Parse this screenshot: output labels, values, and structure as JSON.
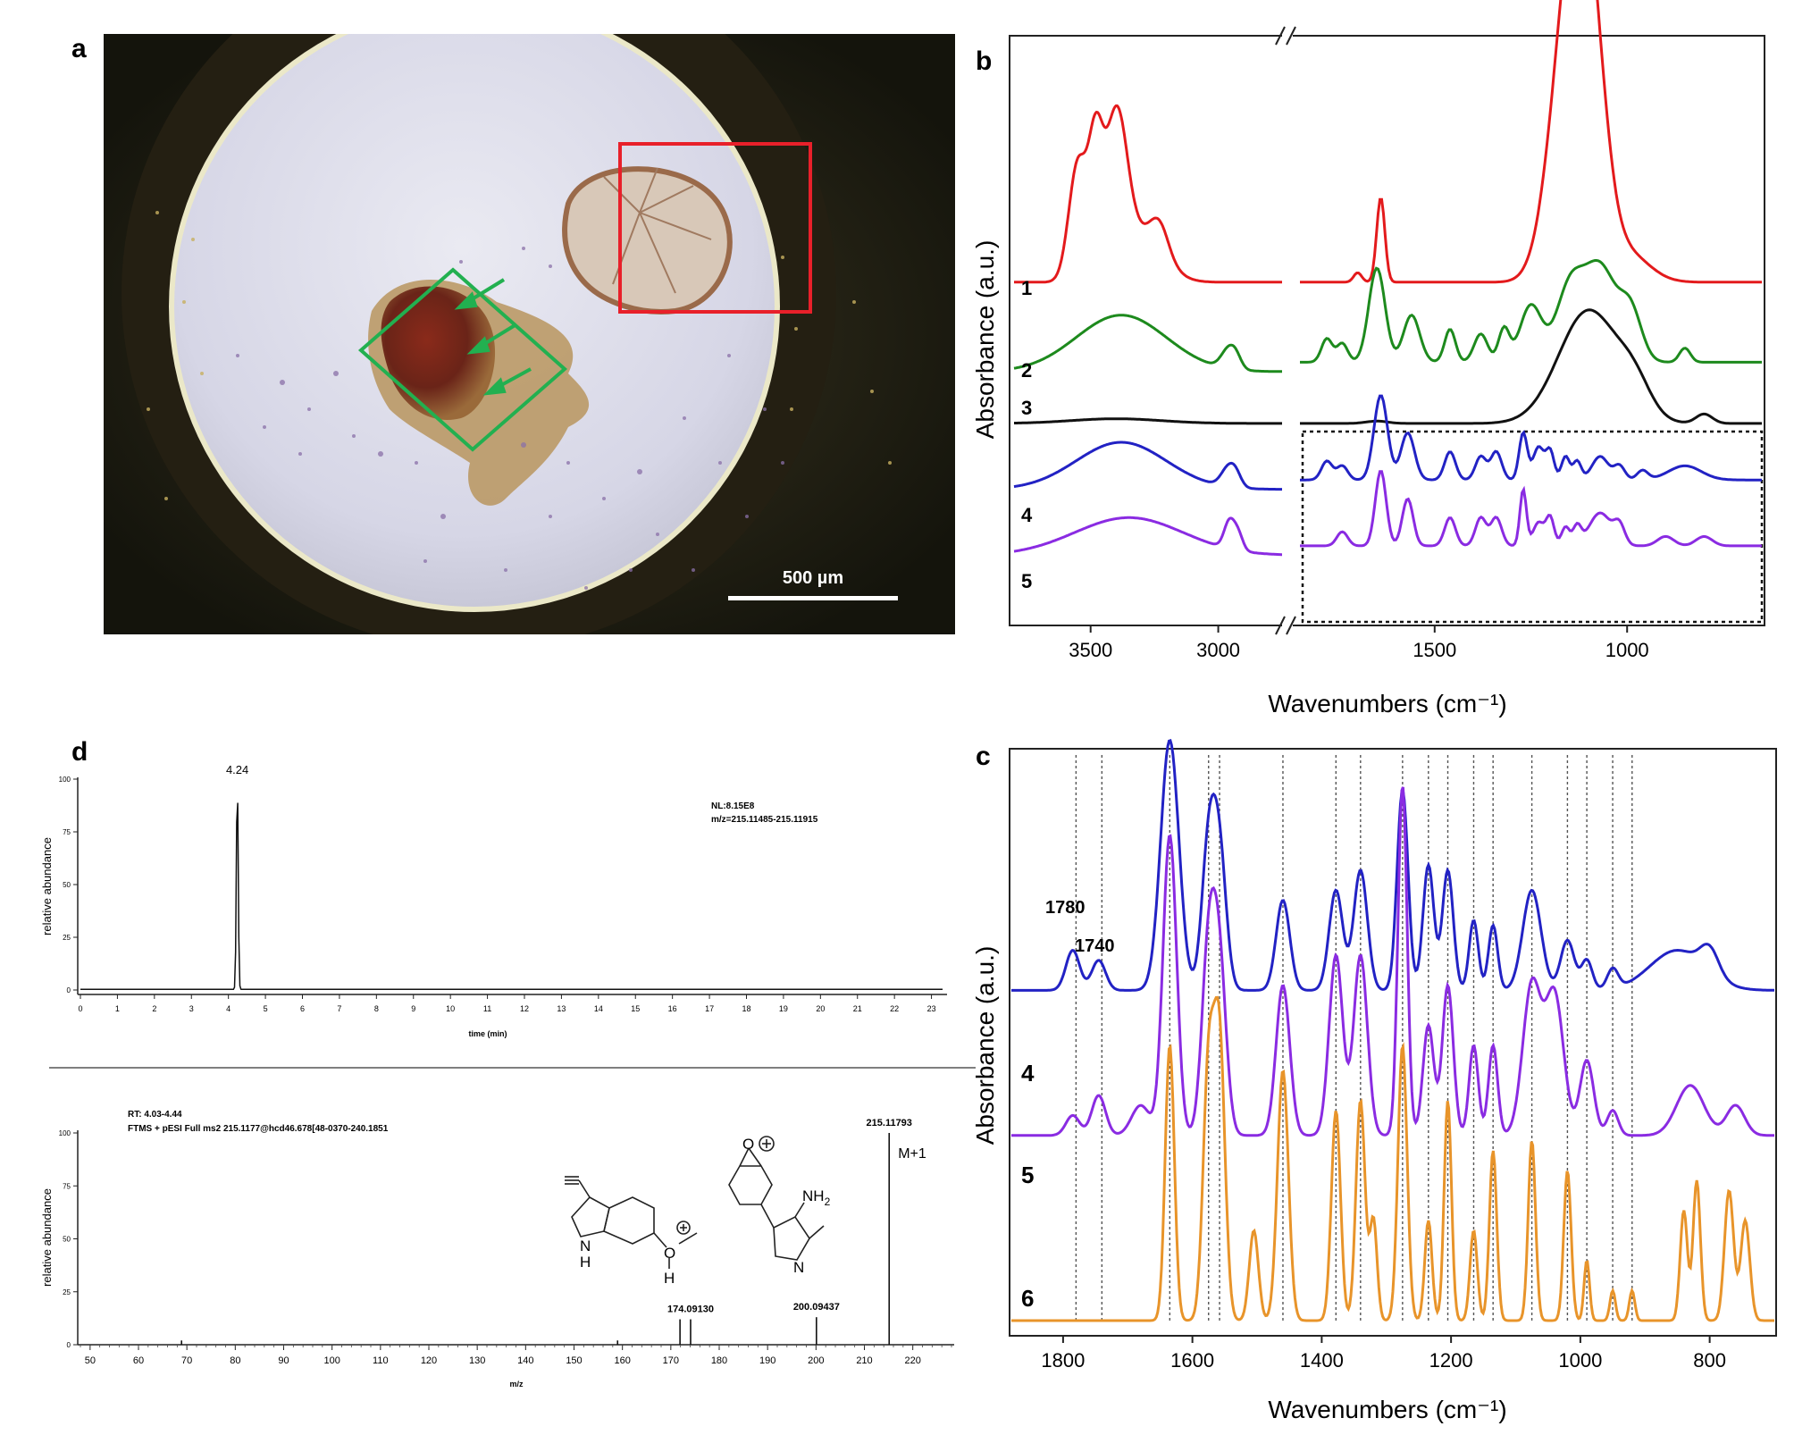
{
  "panels": {
    "a": "a",
    "b": "b",
    "c": "c",
    "d": "d"
  },
  "micrograph": {
    "scale_bar_label": "500 µm",
    "highlight_colors": {
      "region_red": "#e8202a",
      "region_green": "#22b050",
      "arrows": "#22b050"
    },
    "fibre_count_arrows": 3
  },
  "chart_data": [
    {
      "id": "b",
      "type": "line",
      "xlabel": "Wavenumbers (cm⁻¹)",
      "ylabel": "Absorbance (a.u.)",
      "x_axis_break": true,
      "x_left_range": [
        3800,
        2750
      ],
      "x_right_range": [
        1850,
        650
      ],
      "x_ticks_left": [
        "3500",
        "3000"
      ],
      "x_ticks_right": [
        "1500",
        "1000"
      ],
      "highlight_box": "dotted box around spectra 4 and 5 (fingerprint region)",
      "series": [
        {
          "name": "1",
          "color": "#e31a1c",
          "offset": 0.53,
          "left_baseline": 0.0,
          "left_peaks": [
            [
              3550,
              0.25,
              50
            ],
            [
              3480,
              0.26,
              40
            ],
            [
              3400,
              0.32,
              60
            ],
            [
              3300,
              0.1,
              120
            ],
            [
              3230,
              0.06,
              50
            ]
          ],
          "right_baseline": 0.0,
          "right_peaks": [
            [
              1700,
              0.02,
              15
            ],
            [
              1640,
              0.18,
              15
            ],
            [
              1150,
              0.55,
              70
            ],
            [
              1100,
              0.45,
              60
            ],
            [
              1000,
              0.06,
              80
            ]
          ]
        },
        {
          "name": "2",
          "color": "#1d8a1d",
          "offset": 0.34,
          "left_baseline": 0.0,
          "left_peaks": [
            [
              3380,
              0.12,
              250
            ],
            [
              2960,
              0.04,
              40
            ],
            [
              2930,
              0.02,
              30
            ]
          ],
          "right_baseline": 0.02,
          "right_peaks": [
            [
              1780,
              0.05,
              20
            ],
            [
              1740,
              0.04,
              20
            ],
            [
              1650,
              0.2,
              30
            ],
            [
              1560,
              0.1,
              30
            ],
            [
              1460,
              0.07,
              20
            ],
            [
              1380,
              0.06,
              25
            ],
            [
              1320,
              0.07,
              20
            ],
            [
              1250,
              0.12,
              40
            ],
            [
              1150,
              0.15,
              50
            ],
            [
              1070,
              0.2,
              60
            ],
            [
              990,
              0.1,
              40
            ],
            [
              850,
              0.03,
              20
            ]
          ]
        },
        {
          "name": "3",
          "color": "#111111",
          "offset": 0.23,
          "left_baseline": 0.0,
          "left_peaks": [
            [
              3400,
              0.01,
              250
            ]
          ],
          "right_baseline": 0.0,
          "right_peaks": [
            [
              1650,
              0.005,
              40
            ],
            [
              1100,
              0.24,
              110
            ],
            [
              980,
              0.06,
              60
            ],
            [
              800,
              0.02,
              30
            ]
          ]
        },
        {
          "name": "4",
          "color": "#2222c4",
          "offset": 0.09,
          "left_baseline": 0.0,
          "left_peaks": [
            [
              3380,
              0.1,
              250
            ],
            [
              2960,
              0.04,
              40
            ],
            [
              2930,
              0.02,
              30
            ]
          ],
          "right_baseline": 0.02,
          "right_peaks": [
            [
              1780,
              0.04,
              20
            ],
            [
              1740,
              0.03,
              20
            ],
            [
              1640,
              0.18,
              25
            ],
            [
              1570,
              0.1,
              25
            ],
            [
              1460,
              0.06,
              20
            ],
            [
              1380,
              0.05,
              20
            ],
            [
              1340,
              0.06,
              20
            ],
            [
              1270,
              0.1,
              15
            ],
            [
              1230,
              0.07,
              20
            ],
            [
              1200,
              0.06,
              15
            ],
            [
              1160,
              0.05,
              15
            ],
            [
              1130,
              0.04,
              15
            ],
            [
              1070,
              0.05,
              30
            ],
            [
              1020,
              0.03,
              20
            ],
            [
              960,
              0.02,
              20
            ],
            [
              850,
              0.03,
              60
            ]
          ]
        },
        {
          "name": "5",
          "color": "#8a2be2",
          "offset": -0.05,
          "left_baseline": 0.0,
          "left_peaks": [
            [
              3350,
              0.08,
              300
            ],
            [
              2955,
              0.06,
              30
            ],
            [
              2920,
              0.03,
              25
            ]
          ],
          "right_baseline": 0.02,
          "right_peaks": [
            [
              1740,
              0.03,
              20
            ],
            [
              1640,
              0.16,
              20
            ],
            [
              1570,
              0.1,
              20
            ],
            [
              1460,
              0.06,
              20
            ],
            [
              1380,
              0.06,
              20
            ],
            [
              1340,
              0.06,
              20
            ],
            [
              1270,
              0.12,
              12
            ],
            [
              1230,
              0.05,
              20
            ],
            [
              1200,
              0.06,
              15
            ],
            [
              1160,
              0.04,
              15
            ],
            [
              1130,
              0.04,
              15
            ],
            [
              1070,
              0.07,
              40
            ],
            [
              1020,
              0.04,
              20
            ],
            [
              900,
              0.02,
              30
            ],
            [
              800,
              0.02,
              30
            ]
          ]
        }
      ]
    },
    {
      "id": "c",
      "type": "line",
      "xlabel": "Wavenumbers (cm⁻¹)",
      "ylabel": "Absorbance (a.u.)",
      "x_range": [
        1880,
        700
      ],
      "x_ticks": [
        "1800",
        "1600",
        "1400",
        "1200",
        "1000",
        "800"
      ],
      "annotations": [
        "1780",
        "1740"
      ],
      "reference_lines": [
        1780,
        1740,
        1635,
        1575,
        1558,
        1460,
        1378,
        1340,
        1275,
        1235,
        1205,
        1165,
        1135,
        1075,
        1020,
        990,
        950,
        920
      ],
      "series": [
        {
          "name": "4",
          "color": "#2222c4",
          "offset": 0.66,
          "baseline": 0.0,
          "peaks": [
            [
              1785,
              0.08,
              15
            ],
            [
              1745,
              0.06,
              15
            ],
            [
              1635,
              0.5,
              20
            ],
            [
              1575,
              0.28,
              15
            ],
            [
              1558,
              0.26,
              15
            ],
            [
              1460,
              0.18,
              15
            ],
            [
              1378,
              0.2,
              15
            ],
            [
              1340,
              0.24,
              15
            ],
            [
              1275,
              0.4,
              12
            ],
            [
              1235,
              0.25,
              12
            ],
            [
              1205,
              0.24,
              12
            ],
            [
              1165,
              0.14,
              10
            ],
            [
              1135,
              0.13,
              10
            ],
            [
              1075,
              0.2,
              20
            ],
            [
              1020,
              0.1,
              15
            ],
            [
              990,
              0.06,
              12
            ],
            [
              950,
              0.04,
              12
            ],
            [
              850,
              0.08,
              60
            ],
            [
              800,
              0.05,
              20
            ]
          ]
        },
        {
          "name": "5",
          "color": "#8a2be2",
          "offset": 0.37,
          "baseline": 0.0,
          "peaks": [
            [
              1785,
              0.04,
              15
            ],
            [
              1745,
              0.08,
              15
            ],
            [
              1680,
              0.06,
              20
            ],
            [
              1635,
              0.6,
              15
            ],
            [
              1575,
              0.36,
              15
            ],
            [
              1558,
              0.32,
              15
            ],
            [
              1460,
              0.3,
              15
            ],
            [
              1378,
              0.36,
              15
            ],
            [
              1340,
              0.36,
              15
            ],
            [
              1275,
              0.7,
              10
            ],
            [
              1235,
              0.22,
              12
            ],
            [
              1205,
              0.3,
              12
            ],
            [
              1165,
              0.18,
              10
            ],
            [
              1135,
              0.18,
              10
            ],
            [
              1075,
              0.3,
              20
            ],
            [
              1040,
              0.28,
              20
            ],
            [
              990,
              0.15,
              15
            ],
            [
              950,
              0.05,
              12
            ],
            [
              830,
              0.1,
              30
            ],
            [
              760,
              0.06,
              20
            ]
          ]
        },
        {
          "name": "6",
          "color": "#e8942a",
          "offset": 0.0,
          "baseline": 0.0,
          "peaks": [
            [
              1635,
              0.55,
              10
            ],
            [
              1575,
              0.5,
              12
            ],
            [
              1558,
              0.55,
              12
            ],
            [
              1505,
              0.18,
              10
            ],
            [
              1460,
              0.5,
              12
            ],
            [
              1378,
              0.42,
              10
            ],
            [
              1340,
              0.44,
              10
            ],
            [
              1320,
              0.2,
              8
            ],
            [
              1275,
              0.55,
              10
            ],
            [
              1235,
              0.2,
              8
            ],
            [
              1205,
              0.44,
              8
            ],
            [
              1165,
              0.18,
              8
            ],
            [
              1135,
              0.34,
              8
            ],
            [
              1075,
              0.36,
              8
            ],
            [
              1020,
              0.3,
              8
            ],
            [
              990,
              0.12,
              6
            ],
            [
              950,
              0.06,
              6
            ],
            [
              920,
              0.06,
              6
            ],
            [
              840,
              0.22,
              8
            ],
            [
              820,
              0.28,
              8
            ],
            [
              770,
              0.26,
              10
            ],
            [
              745,
              0.2,
              10
            ]
          ]
        }
      ]
    },
    {
      "id": "d_top",
      "type": "line",
      "xlabel": "time (min)",
      "ylabel": "relative abundance",
      "x_range": [
        0,
        23.3
      ],
      "y_range": [
        0,
        100
      ],
      "x_ticks": [
        "0",
        "1",
        "2",
        "3",
        "4",
        "5",
        "6",
        "7",
        "8",
        "9",
        "10",
        "11",
        "12",
        "13",
        "14",
        "15",
        "16",
        "17",
        "18",
        "19",
        "20",
        "21",
        "22",
        "23"
      ],
      "y_ticks": [
        "0",
        "25",
        "50",
        "75",
        "100"
      ],
      "peak_label": "4.24",
      "info_line1": "NL:8.15E8",
      "info_line2": "m/z=215.11485-215.11915",
      "peak": {
        "rt": 4.24,
        "height": 100
      }
    },
    {
      "id": "d_bottom",
      "type": "bar",
      "xlabel": "m/z",
      "ylabel": "relative abundance",
      "x_range": [
        48,
        228
      ],
      "y_range": [
        0,
        100
      ],
      "x_ticks": [
        "50",
        "60",
        "70",
        "80",
        "90",
        "100",
        "110",
        "120",
        "130",
        "140",
        "150",
        "160",
        "170",
        "180",
        "190",
        "200",
        "210",
        "220"
      ],
      "y_ticks": [
        "0",
        "25",
        "50",
        "75",
        "100"
      ],
      "info_line1": "RT: 4.03-4.44",
      "info_line2": "FTMS + pESI Full ms2 215.1177@hcd46.678[48-0370-240.1851",
      "peaks": [
        [
          68.9,
          2
        ],
        [
          159,
          2
        ],
        [
          171.9,
          12
        ],
        [
          174.09,
          12
        ],
        [
          200.09,
          13
        ],
        [
          215.12,
          100
        ]
      ],
      "labels": {
        "p174": "174.09130",
        "p200": "200.09437",
        "p215": "215.11793",
        "ion": "M+1"
      },
      "structure_labels": {
        "nh2": "NH",
        "nh2_sub": "2",
        "nh": "N",
        "h_indole": "H",
        "n_indole": "N",
        "o_plus": "O",
        "h_oxy": "H",
        "o_epox": "O"
      }
    }
  ]
}
